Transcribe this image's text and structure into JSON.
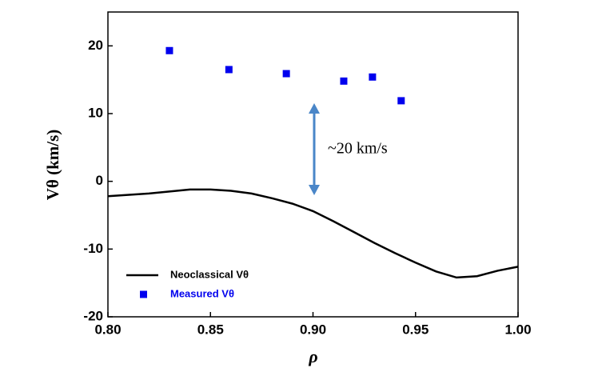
{
  "chart_data": {
    "type": "line-scatter",
    "x_label": "ρ",
    "y_label": "Vθ (km/s)",
    "annotation": "~20 km/s",
    "xlim": [
      0.8,
      1.0
    ],
    "xticks": [
      {
        "value": 0.8,
        "label": "0.80"
      },
      0.85,
      {
        "value": 0.9,
        "label": "0.90"
      },
      0.95,
      {
        "value": 1.0,
        "label": "1.00"
      }
    ],
    "ylim": [
      -20,
      25
    ],
    "yticks": [
      -20,
      -10,
      0,
      10,
      20
    ],
    "legend": "lower left",
    "series": [
      {
        "name": "Neoclassical Vθ",
        "kind": "line",
        "color": "#000000",
        "x": [
          0.8,
          0.82,
          0.84,
          0.85,
          0.86,
          0.87,
          0.88,
          0.89,
          0.9,
          0.91,
          0.92,
          0.93,
          0.94,
          0.95,
          0.96,
          0.97,
          0.98,
          0.99,
          1.0
        ],
        "values": [
          -2.2,
          -1.8,
          -1.2,
          -1.2,
          -1.4,
          -1.8,
          -2.5,
          -3.3,
          -4.4,
          -5.9,
          -7.5,
          -9.1,
          -10.6,
          -12.0,
          -13.3,
          -14.2,
          -14.0,
          -13.2,
          -12.6
        ]
      },
      {
        "name": "Measured Vθ",
        "kind": "scatter",
        "color": "#0000ee",
        "x": [
          0.83,
          0.859,
          0.887,
          0.915,
          0.929,
          0.943
        ],
        "values": [
          19.3,
          16.5,
          15.9,
          14.8,
          15.4,
          11.9
        ]
      }
    ]
  }
}
